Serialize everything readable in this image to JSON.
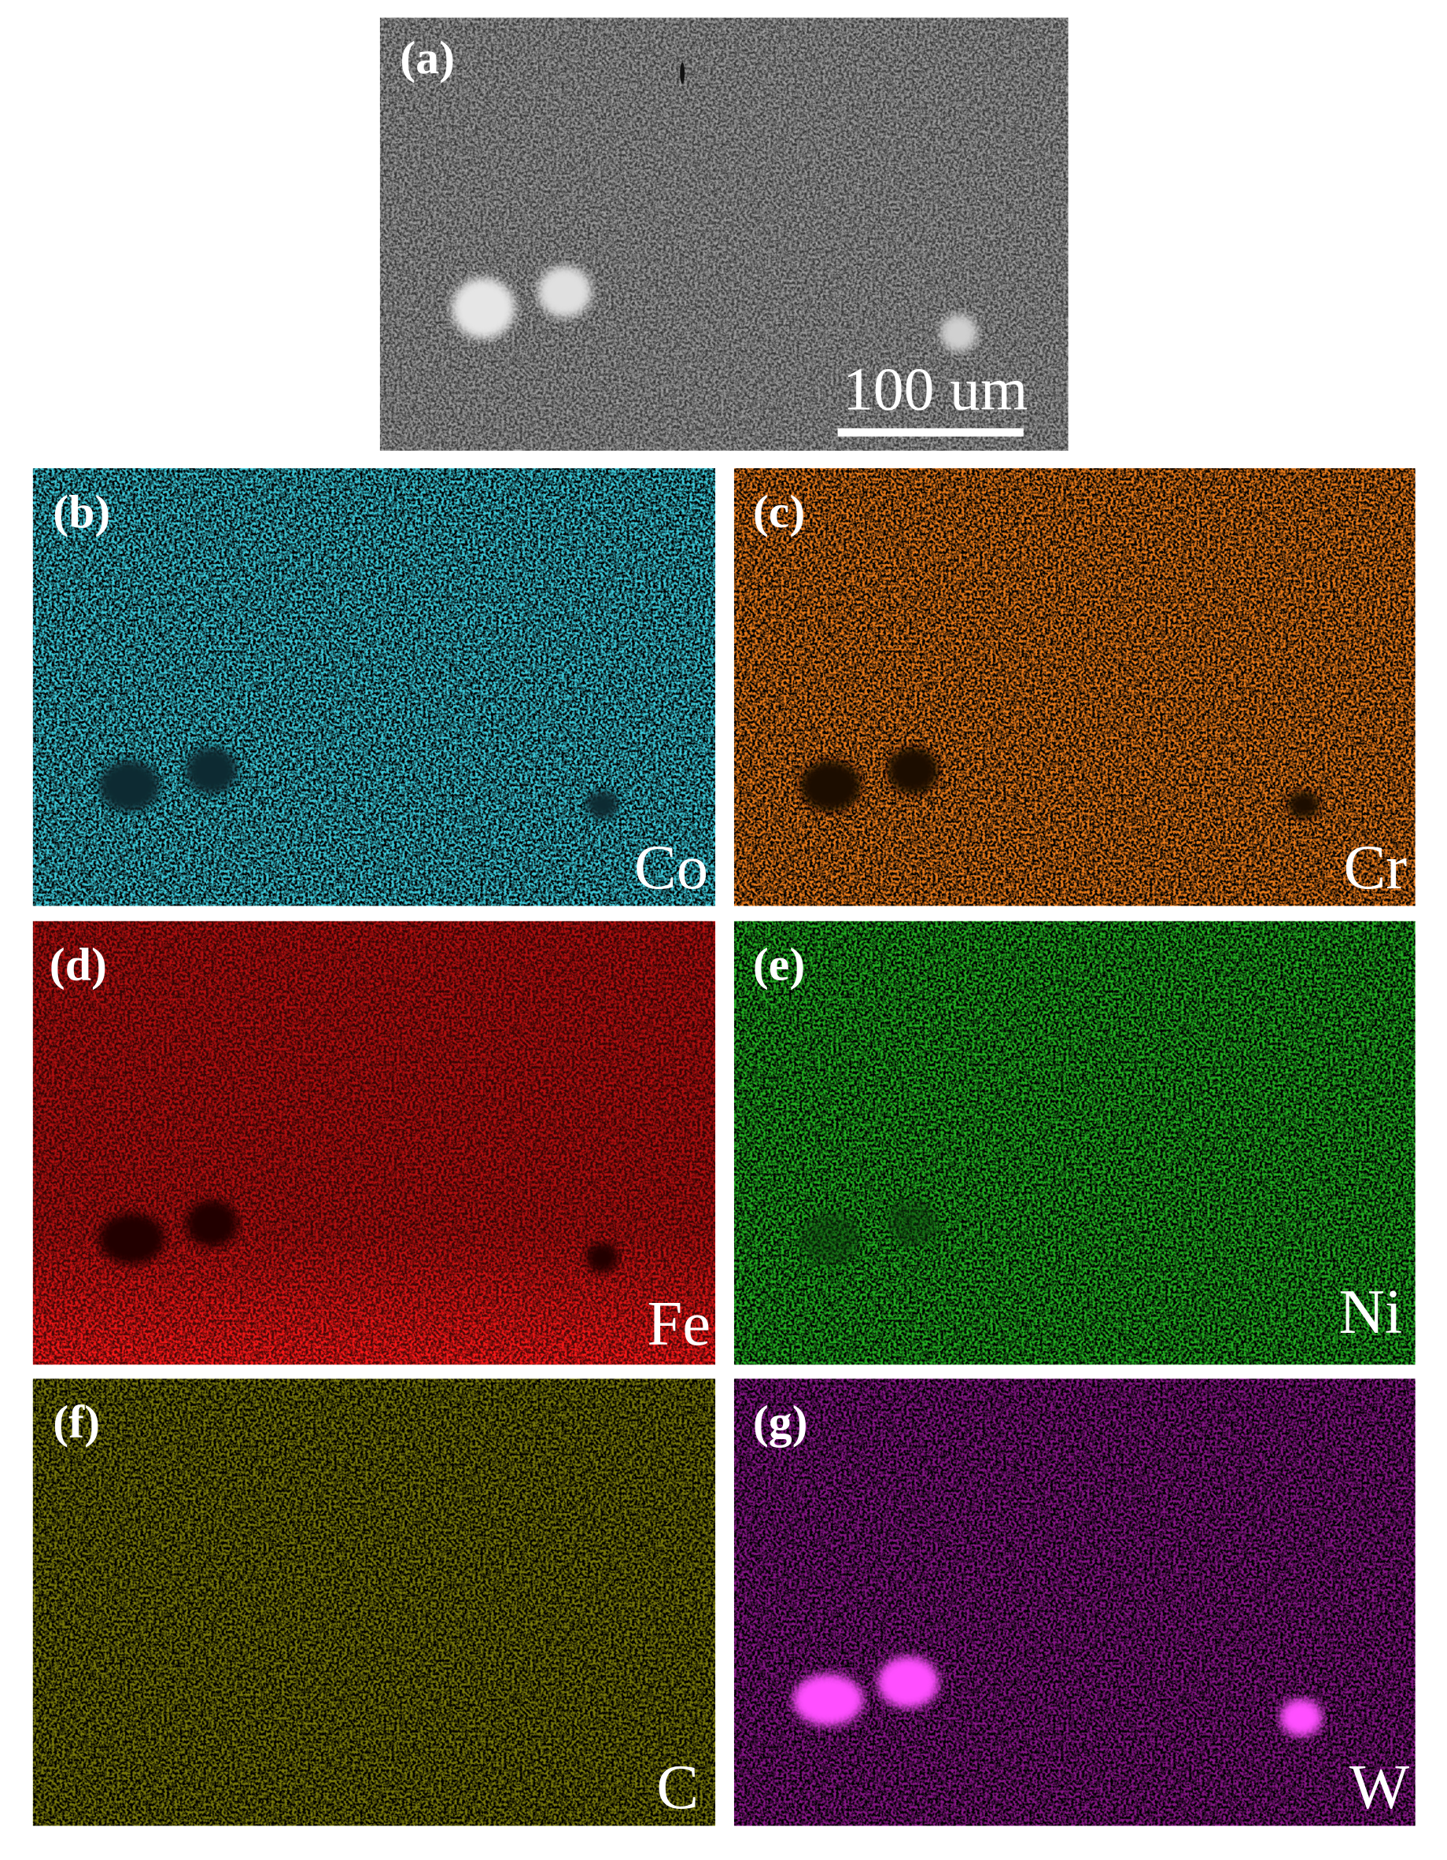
{
  "panels": [
    {
      "label": "(a)",
      "scale_bar": "100 um"
    },
    {
      "label": "(b)",
      "element": "Co"
    },
    {
      "label": "(c)",
      "element": "Cr"
    },
    {
      "label": "(d)",
      "element": "Fe"
    },
    {
      "label": "(e)",
      "element": "Ni"
    },
    {
      "label": "(f)",
      "element": "C"
    },
    {
      "label": "(g)",
      "element": "W"
    }
  ]
}
